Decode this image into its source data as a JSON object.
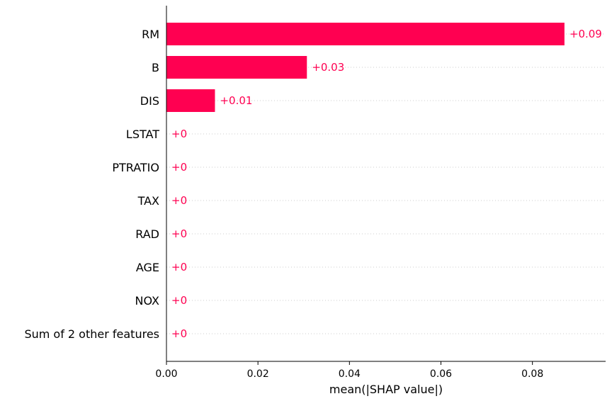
{
  "chart_data": {
    "type": "bar",
    "orientation": "horizontal",
    "categories": [
      "RM",
      "B",
      "DIS",
      "LSTAT",
      "PTRATIO",
      "TAX",
      "RAD",
      "AGE",
      "NOX",
      "Sum of 2 other features"
    ],
    "values": [
      0.087,
      0.0307,
      0.0106,
      0,
      0,
      0,
      0,
      0,
      0,
      0
    ],
    "data_labels": [
      "+0.09",
      "+0.03",
      "+0.01",
      "+0",
      "+0",
      "+0",
      "+0",
      "+0",
      "+0",
      "+0"
    ],
    "xlabel": "mean(|SHAP value|)",
    "ylabel": "",
    "title": "",
    "xlim": [
      0,
      0.096
    ],
    "xticks": [
      0,
      0.02,
      0.04,
      0.06,
      0.08
    ],
    "xtick_labels": [
      "0.00",
      "0.02",
      "0.04",
      "0.06",
      "0.08"
    ],
    "grid": "dotted horizontal guide per bar",
    "colors": {
      "bar": "#ff0051",
      "label": "#ff0051",
      "axis": "#000000",
      "guide": "#cccccc"
    }
  }
}
